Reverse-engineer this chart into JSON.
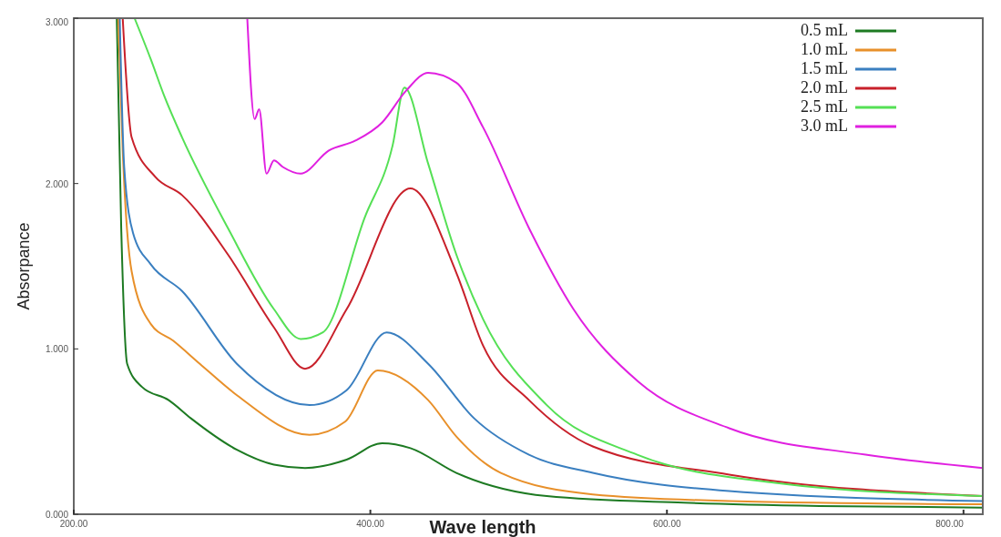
{
  "chart_data": {
    "type": "line",
    "xlabel": "Wave length",
    "ylabel": "Absorpance",
    "xlim": [
      200,
      813
    ],
    "ylim": [
      0,
      3
    ],
    "xticks": [
      {
        "value": 200,
        "label": "200.00"
      },
      {
        "value": 400,
        "label": "400.00"
      },
      {
        "value": 600,
        "label": "600.00"
      },
      {
        "value": 800,
        "label": "800.00"
      }
    ],
    "yticks": [
      {
        "value": 0,
        "label": "0.000"
      },
      {
        "value": 1,
        "label": "1.000"
      },
      {
        "value": 2,
        "label": "2.000"
      },
      {
        "value": 3,
        "label": "3.000"
      }
    ],
    "grid": false,
    "legend": "top right",
    "marker": "none",
    "line_style": "solid",
    "series": [
      {
        "name": "0.5 mL",
        "color": "#1d7a22",
        "x": [
          229,
          232,
          236,
          246,
          264,
          279,
          310,
          335,
          356,
          384,
          408,
          427,
          458,
          519,
          611,
          703,
          813
        ],
        "values": [
          3.0,
          1.73,
          0.91,
          0.77,
          0.69,
          0.58,
          0.39,
          0.3,
          0.28,
          0.33,
          0.43,
          0.4,
          0.25,
          0.11,
          0.07,
          0.05,
          0.04
        ]
      },
      {
        "name": "1.0 mL",
        "color": "#e8902a",
        "x": [
          230,
          233,
          239,
          252,
          267,
          285,
          310,
          359,
          383,
          405,
          439,
          458,
          488,
          550,
          642,
          813
        ],
        "values": [
          3.0,
          2.2,
          1.47,
          1.15,
          1.05,
          0.91,
          0.72,
          0.48,
          0.56,
          0.87,
          0.69,
          0.47,
          0.25,
          0.12,
          0.08,
          0.06
        ]
      },
      {
        "name": "1.5 mL",
        "color": "#3a7fc0",
        "x": [
          231,
          234,
          240,
          252,
          273,
          310,
          359,
          384,
          411,
          439,
          470,
          507,
          550,
          642,
          813
        ],
        "values": [
          3.0,
          2.1,
          1.7,
          1.51,
          1.35,
          0.91,
          0.66,
          0.75,
          1.1,
          0.91,
          0.58,
          0.36,
          0.25,
          0.14,
          0.08
        ]
      },
      {
        "name": "2.0 mL",
        "color": "#c8202a",
        "x": [
          233,
          239,
          255,
          273,
          304,
          335,
          356,
          384,
          427,
          458,
          476,
          507,
          550,
          642,
          813
        ],
        "values": [
          3.0,
          2.28,
          2.04,
          1.93,
          1.57,
          1.13,
          0.88,
          1.24,
          1.97,
          1.46,
          1.02,
          0.69,
          0.41,
          0.24,
          0.11
        ]
      },
      {
        "name": "2.5 mL",
        "color": "#55e055",
        "x": [
          241,
          252,
          261,
          273,
          304,
          335,
          353,
          368,
          396,
          415,
          423,
          439,
          458,
          476,
          519,
          580,
          673,
          813
        ],
        "values": [
          3.0,
          2.75,
          2.53,
          2.28,
          1.73,
          1.24,
          1.06,
          1.1,
          1.79,
          2.23,
          2.58,
          2.12,
          1.57,
          1.18,
          0.66,
          0.36,
          0.19,
          0.11
        ]
      },
      {
        "name": "3.0 mL",
        "color": "#e020e0",
        "x": [
          317,
          322,
          325,
          330,
          335,
          341,
          353,
          372,
          390,
          408,
          424,
          439,
          458,
          476,
          507,
          537,
          581,
          642,
          734,
          813
        ],
        "values": [
          3.0,
          2.39,
          2.45,
          2.06,
          2.14,
          2.1,
          2.06,
          2.2,
          2.26,
          2.37,
          2.56,
          2.67,
          2.61,
          2.34,
          1.73,
          1.24,
          0.8,
          0.52,
          0.36,
          0.28
        ]
      }
    ]
  }
}
